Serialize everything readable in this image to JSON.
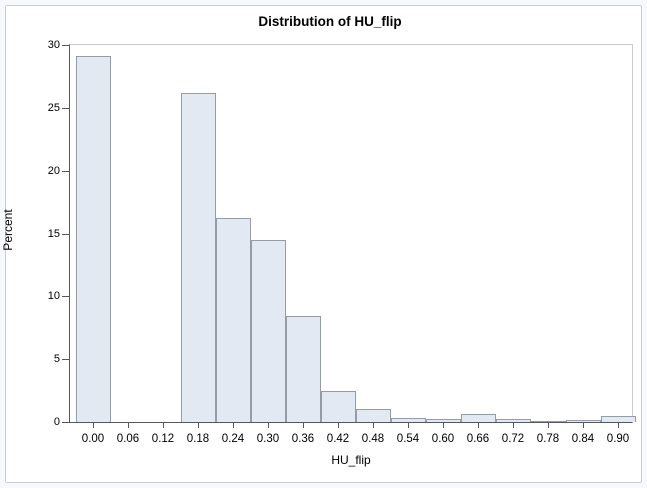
{
  "chart_data": {
    "type": "bar",
    "subtype": "histogram",
    "title": "Distribution of HU_flip",
    "xlabel": "HU_flip",
    "ylabel": "Percent",
    "ylim": [
      0,
      30
    ],
    "yticks": [
      0,
      5,
      10,
      15,
      20,
      25,
      30
    ],
    "bin_width": 0.06,
    "grid": false,
    "legend": false,
    "bins": [
      {
        "midpoint": "0.00",
        "percent": 29.1
      },
      {
        "midpoint": "0.06",
        "percent": 0
      },
      {
        "midpoint": "0.12",
        "percent": 0
      },
      {
        "midpoint": "0.18",
        "percent": 26.2
      },
      {
        "midpoint": "0.24",
        "percent": 16.2
      },
      {
        "midpoint": "0.30",
        "percent": 14.5
      },
      {
        "midpoint": "0.36",
        "percent": 8.4
      },
      {
        "midpoint": "0.42",
        "percent": 2.5
      },
      {
        "midpoint": "0.48",
        "percent": 1.0
      },
      {
        "midpoint": "0.54",
        "percent": 0.3
      },
      {
        "midpoint": "0.60",
        "percent": 0.25
      },
      {
        "midpoint": "0.66",
        "percent": 0.6
      },
      {
        "midpoint": "0.72",
        "percent": 0.25
      },
      {
        "midpoint": "0.78",
        "percent": 0.1
      },
      {
        "midpoint": "0.84",
        "percent": 0.15
      },
      {
        "midpoint": "0.90",
        "percent": 0.45
      }
    ],
    "colors": {
      "bar_fill": "#e3e9f2",
      "bar_border": "#969ca6",
      "axis_line": "#54585e",
      "frame_line": "#c9cdd2",
      "figure_background": "#ffffff",
      "figure_border": "#cbccd0",
      "page_background": "#f7f8fb",
      "text": "#000000"
    }
  }
}
